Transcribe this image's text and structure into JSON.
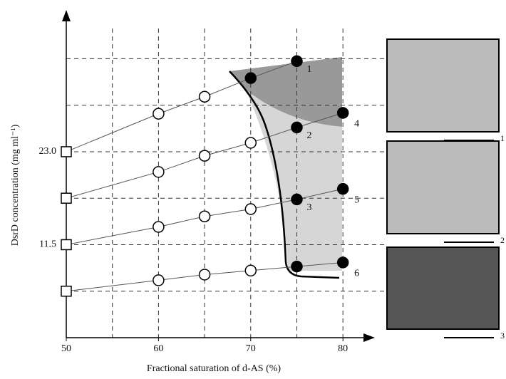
{
  "chart_data": {
    "type": "line",
    "x_label": "Fractional saturation of d-AS (%)",
    "y_label": "DsrD concentration (mg ml⁻¹)",
    "xlim": [
      50,
      83
    ],
    "ylim": [
      0,
      40
    ],
    "xticks": [
      50,
      60,
      70,
      80
    ],
    "yticks": [
      11.5,
      {
        "value": 23,
        "label": "23.0"
      }
    ],
    "xgrid": [
      55,
      60,
      65,
      70,
      75,
      80
    ],
    "ygrid": [
      5.75,
      11.5,
      17.25,
      23,
      28.75,
      34.5
    ],
    "series": [
      {
        "x": [
          50,
          60,
          65,
          70,
          75
        ],
        "values": [
          23,
          27.7,
          29.8,
          32.1,
          34.2
        ],
        "markers": [
          "square",
          "open",
          "open",
          "filled",
          "filled"
        ],
        "point_labels": [
          null,
          null,
          null,
          null,
          "1"
        ]
      },
      {
        "x": [
          50,
          60,
          65,
          70,
          75,
          80
        ],
        "values": [
          17.25,
          20.5,
          22.5,
          24.1,
          26,
          27.8
        ],
        "markers": [
          "square",
          "open",
          "open",
          "open",
          "filled",
          "filled"
        ],
        "point_labels": [
          null,
          null,
          null,
          null,
          "2",
          "4"
        ]
      },
      {
        "x": [
          50,
          60,
          65,
          70,
          75,
          80
        ],
        "values": [
          11.5,
          13.7,
          15,
          15.9,
          17.1,
          18.4
        ],
        "markers": [
          "square",
          "open",
          "open",
          "open",
          "filled",
          "filled"
        ],
        "point_labels": [
          null,
          null,
          null,
          null,
          "3",
          "5"
        ]
      },
      {
        "x": [
          50,
          60,
          65,
          70,
          75,
          80
        ],
        "values": [
          5.75,
          7.1,
          7.8,
          8.3,
          8.8,
          9.3
        ],
        "markers": [
          "square",
          "open",
          "open",
          "open",
          "filled",
          "filled"
        ],
        "point_labels": [
          null,
          null,
          null,
          null,
          null,
          "6"
        ]
      }
    ],
    "panels": [
      "1",
      "2",
      "3"
    ]
  }
}
